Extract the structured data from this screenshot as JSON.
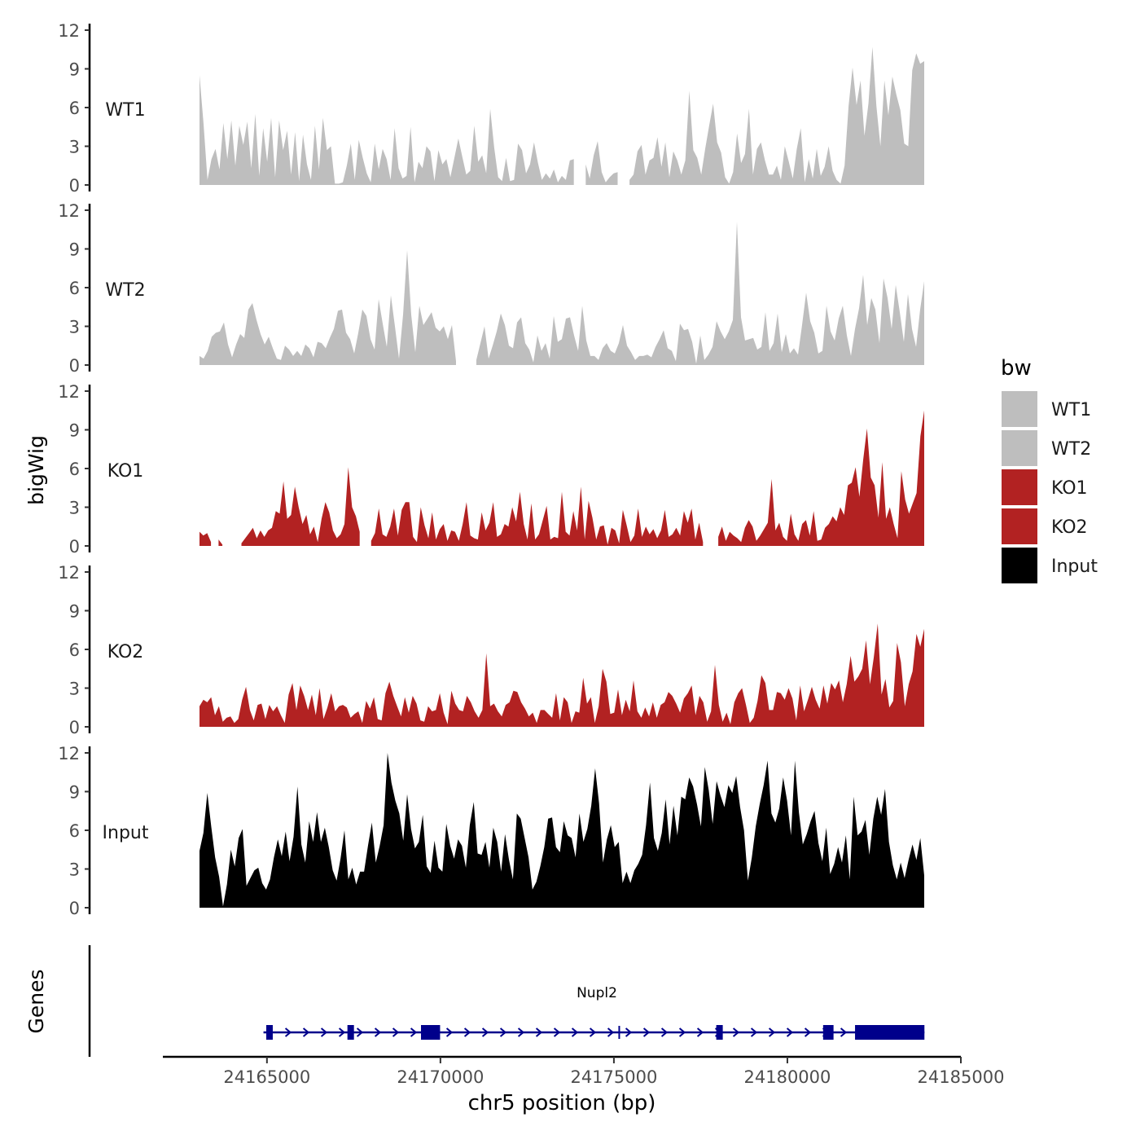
{
  "chart_data": {
    "type": "area",
    "title": "",
    "ylabel": "bigWig",
    "xlabel": "chr5 position (bp)",
    "ylim": [
      0,
      12
    ],
    "yticks": [
      0,
      3,
      6,
      9,
      12
    ],
    "ytick_labels": [
      "0",
      "3",
      "6",
      "9",
      "12"
    ],
    "xlim": [
      24162000,
      24185000
    ],
    "data_range": [
      24163000,
      24184000
    ],
    "xticks": [
      24165000,
      24170000,
      24175000,
      24180000,
      24185000
    ],
    "xtick_labels": [
      "24165000",
      "24170000",
      "24175000",
      "24180000",
      "24185000"
    ],
    "legend": {
      "title": "bw",
      "placement": "right",
      "items": [
        {
          "label": "WT1",
          "color": "#bebebe"
        },
        {
          "label": "WT2",
          "color": "#bebebe"
        },
        {
          "label": "KO1",
          "color": "#b22222"
        },
        {
          "label": "KO2",
          "color": "#b22222"
        },
        {
          "label": "Input",
          "color": "#000000"
        }
      ]
    },
    "series": [
      {
        "name": "WT1",
        "label": "WT1",
        "color": "#bebebe",
        "values": [
          8.5,
          4.8,
          0.4,
          2.0,
          2.8,
          1.2,
          4.8,
          2.0,
          5.0,
          1.5,
          4.6,
          3.1,
          4.9,
          1.3,
          5.5,
          0.7,
          4.4,
          1.8,
          5.2,
          0.6,
          5.0,
          2.7,
          4.2,
          0.8,
          4.1,
          0.3,
          3.9,
          1.6,
          0.4,
          4.6,
          1.2,
          5.2,
          2.7,
          3.0,
          0.1,
          0.1,
          0.2,
          1.5,
          3.2,
          0.4,
          3.5,
          2.1,
          0.9,
          0.2,
          3.2,
          1.2,
          2.8,
          2.0,
          0.4,
          4.4,
          1.3,
          0.5,
          0.7,
          4.5,
          0.2,
          1.8,
          1.3,
          3.0,
          2.6,
          0.3,
          2.7,
          1.6,
          2.0,
          0.6,
          2.1,
          3.6,
          2.2,
          0.8,
          1.1,
          4.6,
          1.8,
          2.3,
          0.9,
          5.9,
          2.9,
          0.6,
          0.3,
          2.1,
          0.3,
          0.4,
          3.2,
          2.7,
          0.9,
          1.6,
          3.3,
          1.7,
          0.4,
          0.9,
          0.5,
          1.2,
          0.2,
          0.7,
          0.4,
          1.9,
          2.0,
          null,
          null,
          1.6,
          0.5,
          2.3,
          3.4,
          1.0,
          0.2,
          0.6,
          0.9,
          1.0,
          null,
          null,
          0.4,
          0.8,
          2.6,
          3.1,
          0.8,
          1.9,
          2.1,
          3.7,
          1.4,
          3.3,
          0.6,
          2.6,
          1.9,
          0.8,
          1.9,
          7.3,
          2.7,
          2.1,
          0.8,
          2.8,
          4.6,
          6.3,
          3.3,
          2.5,
          0.6,
          0.1,
          1.0,
          4.0,
          1.7,
          2.4,
          5.9,
          0.8,
          2.8,
          3.3,
          1.9,
          0.8,
          0.8,
          1.5,
          0.4,
          3.0,
          1.8,
          0.5,
          2.8,
          4.4,
          0.2,
          2.0,
          0.5,
          2.8,
          0.7,
          1.4,
          3.0,
          1.1,
          0.4,
          0.1,
          1.5,
          6.1,
          9.1,
          6.2,
          8.1,
          3.8,
          6.3,
          10.7,
          6.1,
          3.0,
          8.1,
          5.4,
          8.4,
          7.0,
          5.8,
          3.2,
          3.0,
          8.9,
          10.2,
          9.4,
          9.6
        ]
      },
      {
        "name": "WT2",
        "label": "WT2",
        "color": "#bebebe",
        "values": [
          0.7,
          0.5,
          1.1,
          2.2,
          2.5,
          2.6,
          3.3,
          1.6,
          0.6,
          1.6,
          2.4,
          2.1,
          4.3,
          4.8,
          3.5,
          2.4,
          1.6,
          2.2,
          1.3,
          0.5,
          0.4,
          1.5,
          1.2,
          0.7,
          1.1,
          0.7,
          1.6,
          1.3,
          0.6,
          1.8,
          1.7,
          1.3,
          2.1,
          2.8,
          4.2,
          4.3,
          2.5,
          2.0,
          0.9,
          2.5,
          4.3,
          3.8,
          2.0,
          1.2,
          5.1,
          3.2,
          1.4,
          5.4,
          3.0,
          0.5,
          3.9,
          8.9,
          3.9,
          1.0,
          4.6,
          3.1,
          3.6,
          4.1,
          2.9,
          2.6,
          3.0,
          2.0,
          3.1,
          0.3,
          null,
          null,
          null,
          null,
          0.4,
          1.7,
          3.0,
          0.5,
          1.5,
          2.6,
          4.0,
          3.1,
          1.5,
          1.3,
          3.3,
          3.7,
          1.7,
          1.2,
          0.2,
          2.3,
          1.1,
          1.7,
          0.5,
          3.8,
          1.8,
          2.0,
          3.6,
          3.7,
          2.3,
          1.1,
          4.6,
          1.9,
          0.7,
          0.7,
          0.4,
          1.3,
          1.7,
          1.1,
          0.9,
          1.7,
          3.1,
          1.5,
          1.0,
          0.4,
          0.7,
          0.7,
          0.8,
          0.6,
          1.4,
          2.0,
          2.7,
          1.3,
          1.1,
          0.3,
          3.2,
          2.7,
          2.8,
          1.8,
          0.1,
          2.3,
          0.4,
          0.8,
          1.4,
          3.4,
          2.6,
          2.0,
          2.6,
          3.5,
          11.1,
          3.7,
          1.9,
          2.0,
          2.1,
          1.2,
          1.4,
          4.1,
          1.1,
          1.7,
          4.0,
          1.0,
          2.4,
          0.9,
          1.3,
          0.8,
          3.1,
          5.6,
          3.4,
          2.5,
          0.9,
          1.1,
          4.6,
          2.6,
          1.9,
          3.6,
          4.6,
          2.3,
          0.7,
          2.8,
          4.4,
          7.0,
          3.1,
          5.2,
          4.3,
          1.7,
          6.7,
          5.2,
          2.8,
          6.2,
          4.1,
          1.8,
          5.5,
          2.8,
          1.4,
          4.3,
          6.5
        ]
      },
      {
        "name": "KO1",
        "label": "KO1",
        "color": "#b22222",
        "values": [
          1.1,
          0.8,
          1.0,
          0.3,
          null,
          0.5,
          0.1,
          null,
          null,
          null,
          null,
          0.2,
          0.6,
          1.0,
          1.4,
          0.6,
          1.2,
          0.7,
          1.2,
          1.4,
          2.7,
          2.5,
          5.0,
          2.1,
          2.4,
          4.6,
          3.0,
          1.7,
          2.4,
          0.9,
          1.5,
          0.3,
          2.1,
          3.4,
          2.6,
          1.2,
          0.6,
          0.9,
          1.7,
          6.1,
          3.0,
          2.3,
          1.1,
          null,
          null,
          0.4,
          1.0,
          2.9,
          0.9,
          0.7,
          1.5,
          2.9,
          0.8,
          2.8,
          3.4,
          3.4,
          0.7,
          0.3,
          3.0,
          1.6,
          0.6,
          2.6,
          0.5,
          1.3,
          1.7,
          0.4,
          1.2,
          1.1,
          0.4,
          1.7,
          3.4,
          0.8,
          0.6,
          0.5,
          2.6,
          1.2,
          1.8,
          3.4,
          0.7,
          0.9,
          1.7,
          1.5,
          3.0,
          1.9,
          4.2,
          1.7,
          0.5,
          3.3,
          0.5,
          0.9,
          2.0,
          3.1,
          0.5,
          0.7,
          0.6,
          4.2,
          1.1,
          0.8,
          2.7,
          1.2,
          4.6,
          0.5,
          3.5,
          2.2,
          0.5,
          1.5,
          1.6,
          0.1,
          1.4,
          1.2,
          0.2,
          2.8,
          1.6,
          0.3,
          0.8,
          2.9,
          0.7,
          1.5,
          0.9,
          1.3,
          0.6,
          1.2,
          2.8,
          0.7,
          0.9,
          1.4,
          0.8,
          2.7,
          1.8,
          2.9,
          0.5,
          1.8,
          0.3,
          null,
          null,
          null,
          0.7,
          1.5,
          0.4,
          1.1,
          0.8,
          0.6,
          0.3,
          1.4,
          2.0,
          1.5,
          0.4,
          0.8,
          1.3,
          1.8,
          5.2,
          1.2,
          1.8,
          0.7,
          0.4,
          2.5,
          0.9,
          0.4,
          1.7,
          2.0,
          0.8,
          2.7,
          0.4,
          0.5,
          1.4,
          1.7,
          2.3,
          1.9,
          3.0,
          2.4,
          4.7,
          4.9,
          6.1,
          3.8,
          6.7,
          9.1,
          5.3,
          4.7,
          2.2,
          6.5,
          2.1,
          3.0,
          1.7,
          0.6,
          5.8,
          3.6,
          2.5,
          3.3,
          4.1,
          8.5,
          10.5
        ]
      },
      {
        "name": "KO2",
        "label": "KO2",
        "color": "#b22222",
        "values": [
          1.6,
          2.1,
          1.9,
          2.3,
          0.9,
          1.6,
          0.4,
          0.7,
          0.8,
          0.3,
          0.6,
          2.1,
          3.1,
          1.3,
          0.5,
          1.7,
          1.8,
          0.6,
          1.7,
          1.2,
          1.6,
          0.9,
          0.3,
          2.5,
          3.4,
          1.3,
          3.2,
          2.4,
          1.3,
          2.5,
          0.9,
          3.0,
          0.6,
          1.5,
          2.6,
          1.2,
          1.6,
          1.7,
          1.5,
          0.7,
          1.0,
          1.2,
          0.3,
          2.0,
          1.4,
          2.3,
          0.6,
          0.5,
          2.6,
          3.5,
          2.4,
          1.6,
          0.8,
          2.3,
          1.1,
          2.4,
          1.8,
          0.5,
          0.4,
          1.6,
          1.2,
          1.3,
          2.6,
          1.1,
          0.2,
          2.8,
          1.8,
          1.3,
          1.2,
          2.4,
          1.9,
          1.2,
          0.7,
          1.3,
          5.7,
          1.6,
          1.8,
          1.2,
          0.8,
          1.7,
          1.9,
          2.8,
          2.7,
          1.9,
          1.4,
          0.8,
          1.1,
          0.3,
          1.3,
          1.3,
          1.0,
          0.7,
          2.6,
          0.5,
          2.3,
          1.9,
          0.3,
          1.2,
          1.1,
          3.8,
          1.8,
          2.3,
          0.3,
          1.6,
          4.5,
          3.5,
          1.0,
          1.1,
          2.9,
          0.9,
          2.1,
          1.2,
          3.6,
          1.2,
          0.7,
          1.5,
          0.8,
          1.9,
          0.7,
          1.7,
          1.9,
          2.7,
          2.4,
          1.8,
          1.1,
          2.2,
          2.6,
          3.2,
          0.9,
          2.4,
          1.9,
          0.4,
          1.2,
          4.8,
          1.7,
          0.4,
          1.1,
          0.2,
          1.9,
          2.6,
          3.0,
          1.7,
          0.3,
          0.7,
          2.0,
          4.0,
          3.4,
          1.3,
          1.3,
          2.7,
          2.6,
          2.1,
          3.0,
          2.2,
          0.5,
          3.2,
          1.2,
          2.1,
          3.1,
          2.1,
          1.4,
          3.2,
          1.8,
          3.4,
          2.9,
          3.6,
          1.9,
          3.3,
          5.5,
          3.5,
          3.9,
          4.5,
          6.7,
          3.3,
          5.4,
          8.0,
          2.5,
          3.7,
          1.5,
          2.0,
          6.5,
          5.0,
          1.6,
          3.3,
          4.3,
          7.2,
          6.2,
          7.6
        ]
      },
      {
        "name": "Input",
        "label": "Input",
        "color": "#000000",
        "values": [
          4.4,
          5.8,
          8.9,
          6.3,
          3.9,
          2.4,
          0.1,
          1.8,
          4.5,
          3.2,
          5.4,
          6.1,
          1.7,
          2.3,
          2.9,
          3.1,
          1.9,
          1.4,
          2.2,
          3.9,
          5.3,
          4.0,
          5.9,
          3.6,
          5.5,
          9.4,
          4.9,
          3.5,
          6.7,
          5.1,
          7.4,
          5.1,
          6.2,
          4.7,
          2.9,
          2.1,
          3.8,
          6.0,
          2.2,
          3.1,
          1.8,
          2.8,
          2.8,
          4.8,
          6.6,
          3.5,
          4.8,
          6.4,
          12.0,
          9.7,
          8.3,
          7.3,
          5.2,
          8.8,
          6.1,
          4.6,
          5.1,
          7.2,
          3.2,
          2.7,
          5.2,
          3.1,
          2.8,
          6.5,
          4.8,
          3.8,
          5.3,
          4.8,
          3.1,
          6.4,
          8.2,
          4.2,
          4.1,
          5.1,
          3.1,
          6.2,
          5.1,
          2.8,
          5.7,
          3.7,
          2.2,
          7.3,
          6.9,
          5.4,
          3.9,
          1.4,
          2.0,
          3.2,
          4.7,
          6.9,
          7.0,
          4.7,
          4.3,
          6.7,
          5.6,
          5.4,
          3.9,
          7.3,
          5.1,
          6.1,
          7.9,
          10.8,
          8.1,
          3.5,
          5.3,
          6.4,
          4.7,
          5.1,
          1.9,
          2.8,
          1.9,
          2.9,
          3.4,
          4.1,
          6.4,
          9.7,
          5.4,
          4.4,
          5.8,
          8.4,
          4.9,
          7.9,
          5.6,
          8.6,
          8.4,
          10.1,
          9.4,
          8.0,
          6.3,
          10.9,
          9.1,
          6.5,
          9.8,
          8.7,
          7.8,
          9.5,
          8.9,
          10.2,
          7.8,
          6.0,
          2.1,
          3.9,
          6.3,
          8.0,
          9.5,
          11.4,
          7.3,
          6.6,
          7.7,
          10.1,
          8.3,
          5.6,
          11.4,
          7.4,
          4.9,
          5.7,
          6.7,
          7.5,
          5.0,
          3.6,
          6.2,
          2.6,
          3.4,
          4.7,
          3.5,
          5.6,
          2.2,
          8.6,
          5.6,
          5.9,
          6.8,
          4.1,
          6.9,
          8.6,
          7.2,
          9.2,
          5.1,
          3.3,
          2.2,
          3.5,
          2.3,
          3.7,
          4.9,
          3.7,
          5.4,
          2.5
        ]
      }
    ],
    "genes_track": {
      "label": "Genes",
      "gene_name": "Nupl2",
      "color": "#00008b",
      "strand": "+",
      "span": [
        24164900,
        24183950
      ],
      "exons": [
        {
          "start": 24164980,
          "end": 24165150,
          "type": "small"
        },
        {
          "start": 24167320,
          "end": 24167500,
          "type": "small"
        },
        {
          "start": 24169440,
          "end": 24169990,
          "type": "small"
        },
        {
          "start": 24175130,
          "end": 24175170,
          "type": "thin"
        },
        {
          "start": 24177950,
          "end": 24178100,
          "type": "small"
        },
        {
          "start": 24181030,
          "end": 24181330,
          "type": "small"
        },
        {
          "start": 24181950,
          "end": 24183950,
          "type": "large"
        }
      ]
    }
  }
}
